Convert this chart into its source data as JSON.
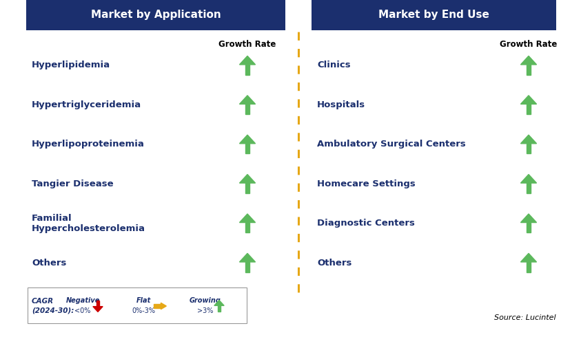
{
  "title_left": "Market by Application",
  "title_right": "Market by End Use",
  "header_bg": "#1b2f6e",
  "header_text_color": "#ffffff",
  "left_items": [
    "Hyperlipidemia",
    "Hypertriglyceridemia",
    "Hyperlipoproteinemia",
    "Tangier Disease",
    "Familial\nHypercholesterolemia",
    "Others"
  ],
  "right_items": [
    "Clinics",
    "Hospitals",
    "Ambulatory Surgical Centers",
    "Homecare Settings",
    "Diagnostic Centers",
    "Others"
  ],
  "arrow_color_up": "#5cb85c",
  "arrow_color_down": "#cc0000",
  "arrow_color_flat": "#e6a817",
  "item_text_color": "#1b2f6e",
  "growth_rate_label": "Growth Rate",
  "legend_cagr1": "CAGR",
  "legend_cagr2": "(2024-30):",
  "legend_neg_label": "Negative",
  "legend_neg_sublabel": "<0%",
  "legend_flat_label": "Flat",
  "legend_flat_sublabel": "0%-3%",
  "legend_grow_label": "Growing",
  "legend_grow_sublabel": ">3%",
  "source_text": "Source: Lucintel",
  "divider_color": "#e6a817",
  "bg_color": "#ffffff",
  "item_fontsize": 9.5,
  "header_fontsize": 11,
  "growth_label_fontsize": 8.5
}
